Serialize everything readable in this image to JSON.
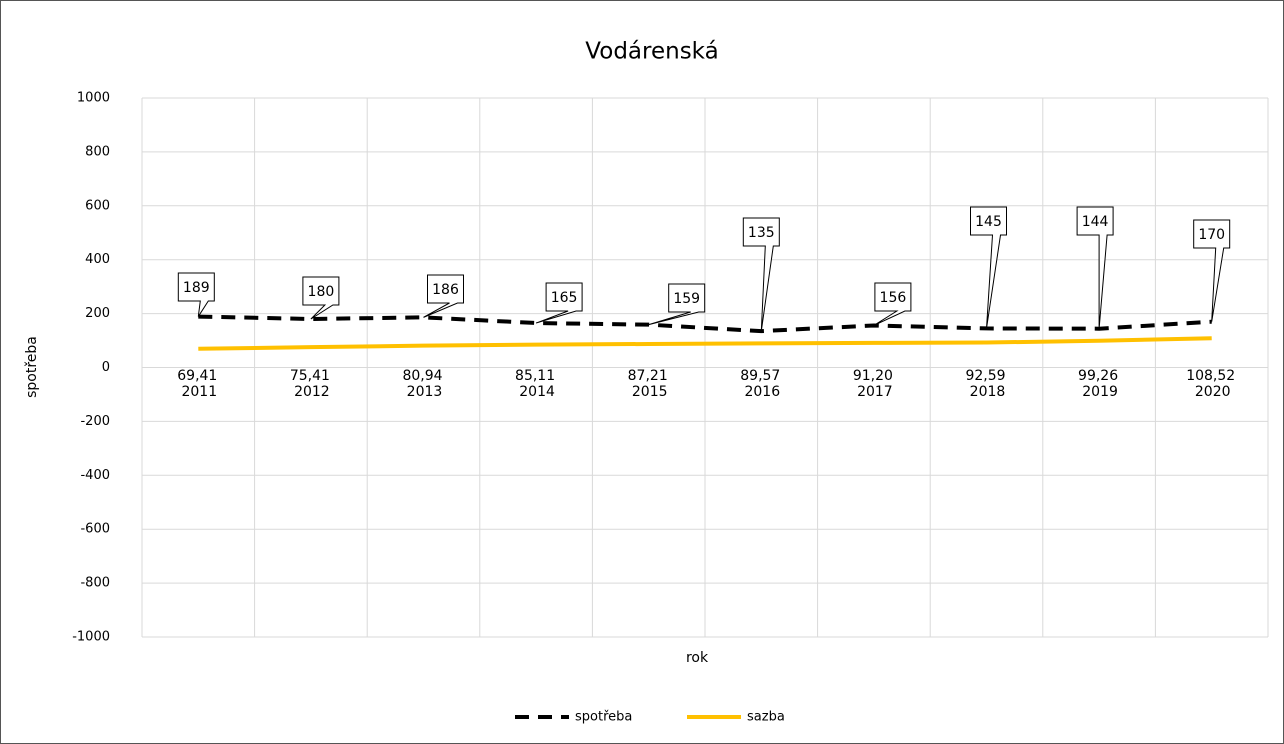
{
  "chart_data": {
    "type": "line",
    "title": "Vodárenská",
    "x_label": "rok",
    "y_label": "spotřeba",
    "categories": [
      "2011",
      "2012",
      "2013",
      "2014",
      "2015",
      "2016",
      "2017",
      "2018",
      "2019",
      "2020"
    ],
    "series": [
      {
        "name": "spotřeba",
        "color": "#000000",
        "dashed": true,
        "values": [
          189,
          180,
          186,
          165,
          159,
          135,
          156,
          145,
          144,
          170
        ]
      },
      {
        "name": "sazba",
        "color": "#ffc000",
        "dashed": false,
        "values": [
          69.41,
          75.41,
          80.94,
          85.11,
          87.21,
          89.57,
          91.2,
          92.59,
          99.26,
          108.52
        ],
        "value_labels": [
          "69,41",
          "75,41",
          "80,94",
          "85,11",
          "87,21",
          "89,57",
          "91,20",
          "92,59",
          "99,26",
          "108,52"
        ]
      }
    ],
    "ylim": [
      -1000,
      1000
    ],
    "yticks": [
      -1000,
      -800,
      -600,
      -400,
      -200,
      0,
      200,
      400,
      600,
      800,
      1000
    ],
    "grid": true,
    "legend": "bottom"
  }
}
